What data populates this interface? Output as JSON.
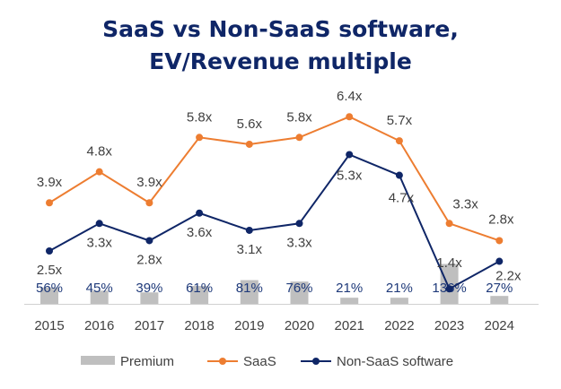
{
  "chart_data": {
    "type": "bar+line",
    "title_line1": "SaaS vs Non-SaaS software,",
    "title_line2": "EV/Revenue multiple",
    "categories": [
      "2015",
      "2016",
      "2017",
      "2018",
      "2019",
      "2020",
      "2021",
      "2022",
      "2023",
      "2024"
    ],
    "series": [
      {
        "name": "Premium",
        "kind": "bar",
        "color": "#bfbfbf",
        "values": [
          56,
          45,
          39,
          61,
          81,
          76,
          21,
          21,
          136,
          27
        ],
        "labels": [
          "56%",
          "45%",
          "39%",
          "61%",
          "81%",
          "76%",
          "21%",
          "21%",
          "136%",
          "27%"
        ]
      },
      {
        "name": "SaaS",
        "kind": "line",
        "color": "#ed7d31",
        "values": [
          3.9,
          4.8,
          3.9,
          5.8,
          5.6,
          5.8,
          6.4,
          5.7,
          3.3,
          2.8
        ],
        "labels": [
          "3.9x",
          "4.8x",
          "3.9x",
          "5.8x",
          "5.6x",
          "5.8x",
          "6.4x",
          "5.7x",
          "3.3x",
          "2.8x"
        ]
      },
      {
        "name": "Non-SaaS software",
        "kind": "line",
        "color": "#0f2667",
        "values": [
          2.5,
          3.3,
          2.8,
          3.6,
          3.1,
          3.3,
          5.3,
          4.7,
          1.4,
          2.2
        ],
        "labels": [
          "2.5x",
          "3.3x",
          "2.8x",
          "3.6x",
          "3.1x",
          "3.3x",
          "5.3x",
          "4.7x",
          "1.4x",
          "2.2x"
        ]
      }
    ],
    "legend_position": "bottom",
    "grid": false
  }
}
